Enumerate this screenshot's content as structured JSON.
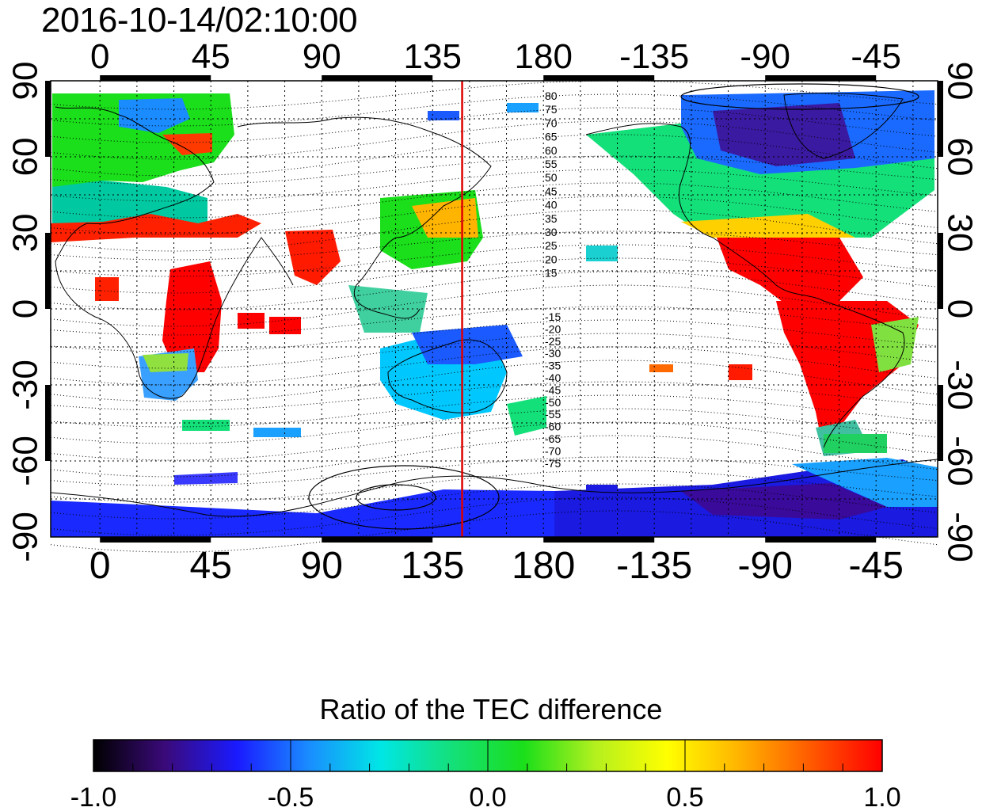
{
  "timestamp": "2016-10-14/02:10:00",
  "map": {
    "x_tick_labels": [
      "0",
      "45",
      "90",
      "135",
      "180",
      "-135",
      "-90",
      "-45"
    ],
    "y_tick_labels": [
      "90",
      "60",
      "30",
      "0",
      "-30",
      "-60",
      "-90"
    ],
    "contour_labels_north": [
      "80",
      "75",
      "70",
      "65",
      "60",
      "55",
      "50",
      "45",
      "40",
      "35",
      "30",
      "25",
      "20",
      "15"
    ],
    "contour_labels_south": [
      "-15",
      "-20",
      "-25",
      "-30",
      "-35",
      "-40",
      "-45",
      "-50",
      "-55",
      "-60",
      "-65",
      "-70",
      "-75"
    ],
    "meridian_line_color": "#dd0000",
    "meridian_longitude": 147
  },
  "colorbar": {
    "title": "Ratio of the TEC difference",
    "tick_labels": [
      "-1.0",
      "-0.5",
      "0.0",
      "0.5",
      "1.0"
    ],
    "colormap": [
      "#000000",
      "#3a0a7a",
      "#1a1aff",
      "#1a8cff",
      "#00e6e6",
      "#14e07a",
      "#1adf1a",
      "#b4f01e",
      "#ffff00",
      "#ffb400",
      "#ff5a00",
      "#ff0000"
    ]
  }
}
